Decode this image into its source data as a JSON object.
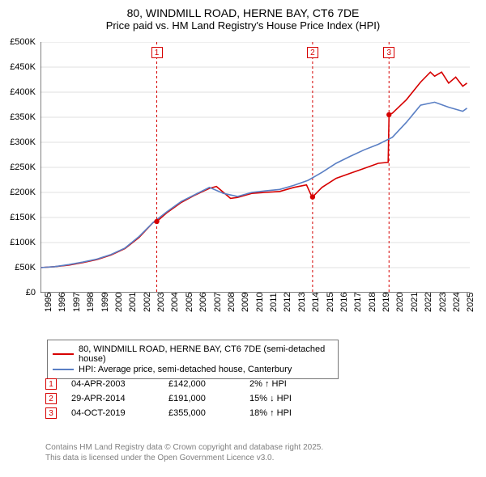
{
  "title": {
    "line1": "80, WINDMILL ROAD, HERNE BAY, CT6 7DE",
    "line2": "Price paid vs. HM Land Registry's House Price Index (HPI)"
  },
  "chart": {
    "type": "line",
    "background_color": "#ffffff",
    "grid_color": "#c0c0c0",
    "axis_color": "#000000",
    "xlim": [
      1995,
      2025.5
    ],
    "ylim": [
      0,
      500000
    ],
    "ytick_step": 50000,
    "yticks": [
      "£0",
      "£50K",
      "£100K",
      "£150K",
      "£200K",
      "£250K",
      "£300K",
      "£350K",
      "£400K",
      "£450K",
      "£500K"
    ],
    "xticks": [
      "1995",
      "1996",
      "1997",
      "1998",
      "1999",
      "2000",
      "2001",
      "2002",
      "2003",
      "2004",
      "2005",
      "2006",
      "2007",
      "2008",
      "2009",
      "2010",
      "2011",
      "2012",
      "2013",
      "2014",
      "2015",
      "2016",
      "2017",
      "2018",
      "2019",
      "2020",
      "2021",
      "2022",
      "2023",
      "2024",
      "2025"
    ],
    "title_fontsize": 14,
    "label_fontsize": 11,
    "line_width": 1.6,
    "series": [
      {
        "name": "80, WINDMILL ROAD, HERNE BAY, CT6 7DE (semi-detached house)",
        "color": "#d60000",
        "data": [
          [
            1995,
            50000
          ],
          [
            1996,
            52000
          ],
          [
            1997,
            55000
          ],
          [
            1998,
            60000
          ],
          [
            1999,
            66000
          ],
          [
            2000,
            75000
          ],
          [
            2001,
            88000
          ],
          [
            2002,
            110000
          ],
          [
            2003,
            140000
          ],
          [
            2003.26,
            142000
          ],
          [
            2004,
            160000
          ],
          [
            2005,
            180000
          ],
          [
            2006,
            195000
          ],
          [
            2007,
            208000
          ],
          [
            2007.5,
            212000
          ],
          [
            2008,
            200000
          ],
          [
            2008.5,
            188000
          ],
          [
            2009,
            190000
          ],
          [
            2010,
            198000
          ],
          [
            2011,
            200000
          ],
          [
            2012,
            202000
          ],
          [
            2013,
            210000
          ],
          [
            2013.9,
            215000
          ],
          [
            2014.3,
            190000
          ],
          [
            2014.33,
            191000
          ],
          [
            2015,
            210000
          ],
          [
            2016,
            228000
          ],
          [
            2017,
            238000
          ],
          [
            2018,
            248000
          ],
          [
            2019,
            258000
          ],
          [
            2019.7,
            260000
          ],
          [
            2019.76,
            355000
          ],
          [
            2020,
            358000
          ],
          [
            2021,
            385000
          ],
          [
            2022,
            420000
          ],
          [
            2022.7,
            440000
          ],
          [
            2023,
            432000
          ],
          [
            2023.5,
            440000
          ],
          [
            2024,
            418000
          ],
          [
            2024.5,
            430000
          ],
          [
            2025,
            412000
          ],
          [
            2025.3,
            418000
          ]
        ]
      },
      {
        "name": "HPI: Average price, semi-detached house, Canterbury",
        "color": "#5a7fc4",
        "data": [
          [
            1995,
            50000
          ],
          [
            1996,
            52000
          ],
          [
            1997,
            56000
          ],
          [
            1998,
            61000
          ],
          [
            1999,
            67000
          ],
          [
            2000,
            76000
          ],
          [
            2001,
            89000
          ],
          [
            2002,
            112000
          ],
          [
            2003,
            140000
          ],
          [
            2004,
            162000
          ],
          [
            2005,
            182000
          ],
          [
            2006,
            196000
          ],
          [
            2007,
            210000
          ],
          [
            2008,
            198000
          ],
          [
            2009,
            192000
          ],
          [
            2010,
            200000
          ],
          [
            2011,
            203000
          ],
          [
            2012,
            206000
          ],
          [
            2013,
            214000
          ],
          [
            2014,
            224000
          ],
          [
            2015,
            240000
          ],
          [
            2016,
            258000
          ],
          [
            2017,
            272000
          ],
          [
            2018,
            285000
          ],
          [
            2019,
            296000
          ],
          [
            2020,
            310000
          ],
          [
            2021,
            340000
          ],
          [
            2022,
            374000
          ],
          [
            2023,
            380000
          ],
          [
            2024,
            370000
          ],
          [
            2025,
            362000
          ],
          [
            2025.3,
            368000
          ]
        ]
      }
    ],
    "markers": [
      {
        "num": "1",
        "x": 2003.26,
        "y": 142000,
        "color": "#d60000"
      },
      {
        "num": "2",
        "x": 2014.33,
        "y": 191000,
        "color": "#d60000"
      },
      {
        "num": "3",
        "x": 2019.76,
        "y": 355000,
        "color": "#d60000"
      }
    ]
  },
  "legend": {
    "items": [
      {
        "color": "#d60000",
        "label": "80, WINDMILL ROAD, HERNE BAY, CT6 7DE (semi-detached house)"
      },
      {
        "color": "#5a7fc4",
        "label": "HPI: Average price, semi-detached house, Canterbury"
      }
    ]
  },
  "events": [
    {
      "num": "1",
      "color": "#d60000",
      "date": "04-APR-2003",
      "price": "£142,000",
      "diff": "2% ↑ HPI"
    },
    {
      "num": "2",
      "color": "#d60000",
      "date": "29-APR-2014",
      "price": "£191,000",
      "diff": "15% ↓ HPI"
    },
    {
      "num": "3",
      "color": "#d60000",
      "date": "04-OCT-2019",
      "price": "£355,000",
      "diff": "18% ↑ HPI"
    }
  ],
  "footer": {
    "line1": "Contains HM Land Registry data © Crown copyright and database right 2025.",
    "line2": "This data is licensed under the Open Government Licence v3.0."
  }
}
